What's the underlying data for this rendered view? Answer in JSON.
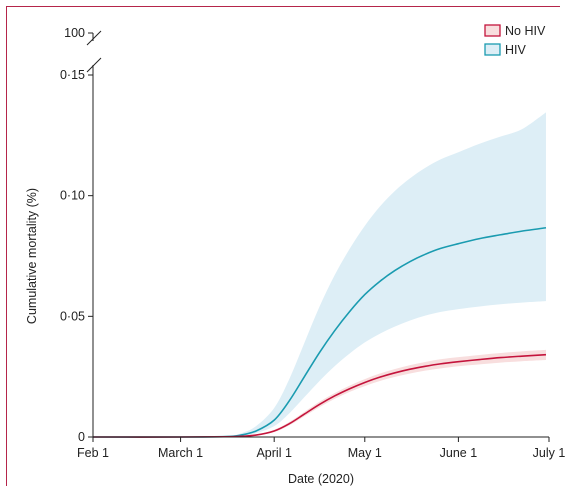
{
  "chart_data": {
    "type": "line",
    "xlabel": "Date (2020)",
    "ylabel": "Cumulative mortality (%)",
    "x": [
      "2020-02-01",
      "2020-03-01",
      "2020-03-16",
      "2020-03-21",
      "2020-03-26",
      "2020-04-01",
      "2020-04-06",
      "2020-04-11",
      "2020-04-16",
      "2020-04-21",
      "2020-04-26",
      "2020-05-01",
      "2020-05-06",
      "2020-05-11",
      "2020-05-16",
      "2020-05-21",
      "2020-05-26",
      "2020-06-01",
      "2020-06-08",
      "2020-06-15",
      "2020-06-22",
      "2020-06-30"
    ],
    "x_tick_labels": [
      "Feb 1",
      "March 1",
      "April 1",
      "May 1",
      "June 1",
      "July 1"
    ],
    "x_ticks": [
      "2020-02-01",
      "2020-03-01",
      "2020-04-01",
      "2020-05-01",
      "2020-06-01",
      "2020-07-01"
    ],
    "xlim": [
      "2020-02-01",
      "2020-07-01"
    ],
    "y_tick_labels": [
      "0",
      "0·05",
      "0·10",
      "0·15",
      "100"
    ],
    "y_ticks": [
      0,
      0.05,
      0.1,
      0.15
    ],
    "ylim": [
      0,
      0.15
    ],
    "axis_break": {
      "lower_top": 0.15,
      "upper_label": "100"
    },
    "grid": false,
    "legend": "top-right",
    "series": [
      {
        "name": "No HIV",
        "line_color": "#c4143c",
        "band_color": "#f8dede",
        "values": [
          0,
          0,
          0.0001,
          0.0003,
          0.0008,
          0.0025,
          0.0055,
          0.0095,
          0.0135,
          0.017,
          0.02,
          0.0226,
          0.0248,
          0.0266,
          0.0281,
          0.0293,
          0.0303,
          0.0312,
          0.0321,
          0.0329,
          0.0335,
          0.0341
        ],
        "lower": [
          0,
          0,
          0.0001,
          0.0002,
          0.0006,
          0.002,
          0.0048,
          0.0086,
          0.0124,
          0.0158,
          0.0187,
          0.0211,
          0.0232,
          0.0249,
          0.0263,
          0.0275,
          0.0284,
          0.0293,
          0.0301,
          0.0308,
          0.0314,
          0.0319
        ],
        "upper": [
          0,
          0,
          0.0001,
          0.0004,
          0.001,
          0.003,
          0.0062,
          0.0104,
          0.0146,
          0.0182,
          0.0213,
          0.024,
          0.0263,
          0.0282,
          0.0298,
          0.0311,
          0.0322,
          0.0331,
          0.034,
          0.0348,
          0.0355,
          0.0361
        ]
      },
      {
        "name": "HIV",
        "line_color": "#1a9bb0",
        "band_color": "#ddeef6",
        "values": [
          0,
          0,
          0.0002,
          0.0008,
          0.0025,
          0.007,
          0.015,
          0.025,
          0.035,
          0.044,
          0.052,
          0.059,
          0.0645,
          0.069,
          0.0727,
          0.0757,
          0.0781,
          0.0801,
          0.0822,
          0.0838,
          0.0853,
          0.0867
        ],
        "lower": [
          0,
          0,
          0.0001,
          0.0005,
          0.0016,
          0.0045,
          0.0098,
          0.0165,
          0.0232,
          0.0293,
          0.0346,
          0.0392,
          0.0428,
          0.0458,
          0.0483,
          0.0503,
          0.0518,
          0.053,
          0.0541,
          0.055,
          0.0557,
          0.0563
        ],
        "upper": [
          0,
          0,
          0.0004,
          0.0015,
          0.0045,
          0.012,
          0.024,
          0.039,
          0.054,
          0.067,
          0.078,
          0.0875,
          0.0955,
          0.102,
          0.1072,
          0.1115,
          0.115,
          0.118,
          0.1215,
          0.1245,
          0.1275,
          0.1345
        ]
      }
    ]
  }
}
